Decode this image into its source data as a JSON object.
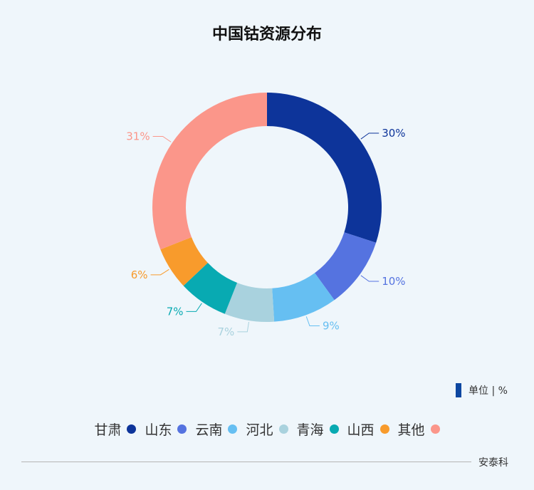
{
  "chart_data": {
    "type": "pie",
    "title": "中国钴资源分布",
    "unit_label": "单位 | %",
    "categories": [
      "甘肃",
      "山东",
      "云南",
      "河北",
      "青海",
      "山西",
      "其他"
    ],
    "values": [
      30,
      10,
      9,
      7,
      7,
      6,
      31
    ],
    "labels": [
      "30%",
      "10%",
      "9%",
      "7%",
      "7%",
      "6%",
      "31%"
    ],
    "colors": [
      "#0d349a",
      "#5573e0",
      "#66bff2",
      "#a9d2de",
      "#08aab2",
      "#f89b2c",
      "#fb968a"
    ],
    "legend_position": "bottom"
  },
  "author": "安泰科"
}
